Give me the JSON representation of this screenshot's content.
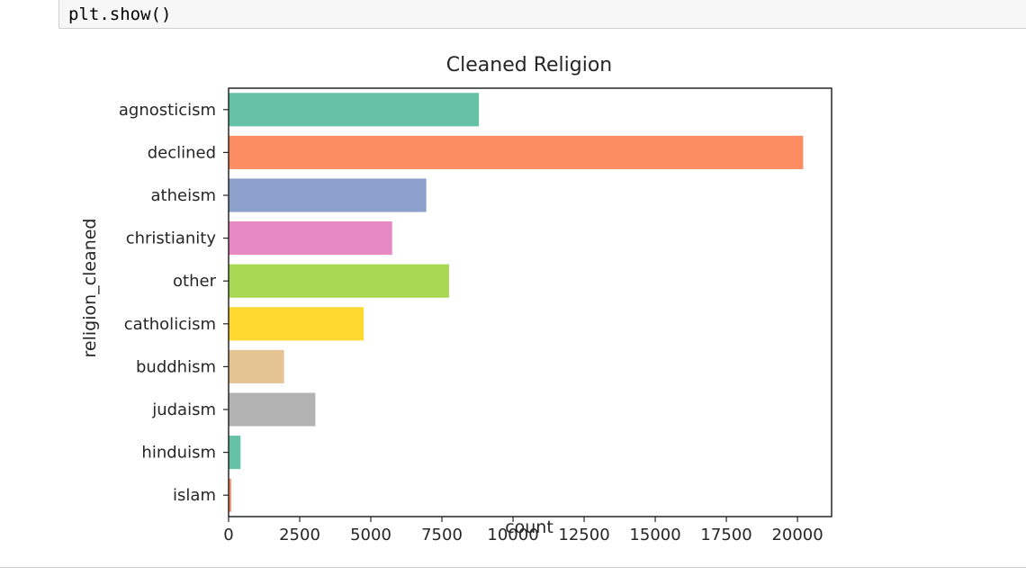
{
  "code_cell": {
    "text": "plt.show()"
  },
  "chart_data": {
    "type": "bar",
    "orientation": "horizontal",
    "title": "Cleaned Religion",
    "xlabel": "count",
    "ylabel": "religion_cleaned",
    "categories": [
      "agnosticism",
      "declined",
      "atheism",
      "christianity",
      "other",
      "catholicism",
      "buddhism",
      "judaism",
      "hinduism",
      "islam"
    ],
    "values": [
      8800,
      20200,
      6950,
      5750,
      7750,
      4750,
      1950,
      3050,
      420,
      90
    ],
    "colors": [
      "#66c2a5",
      "#fc8d62",
      "#8da0cb",
      "#e78ac3",
      "#a6d854",
      "#ffd92f",
      "#e5c494",
      "#b3b3b3",
      "#66c2a5",
      "#fc8d62"
    ],
    "xlim": [
      0,
      21200
    ],
    "xticks": [
      0,
      2500,
      5000,
      7500,
      10000,
      12500,
      15000,
      17500,
      20000
    ],
    "xtick_labels": [
      "0",
      "2500",
      "5000",
      "7500",
      "10000",
      "12500",
      "15000",
      "17500",
      "20000"
    ],
    "grid": false,
    "legend": "none"
  }
}
